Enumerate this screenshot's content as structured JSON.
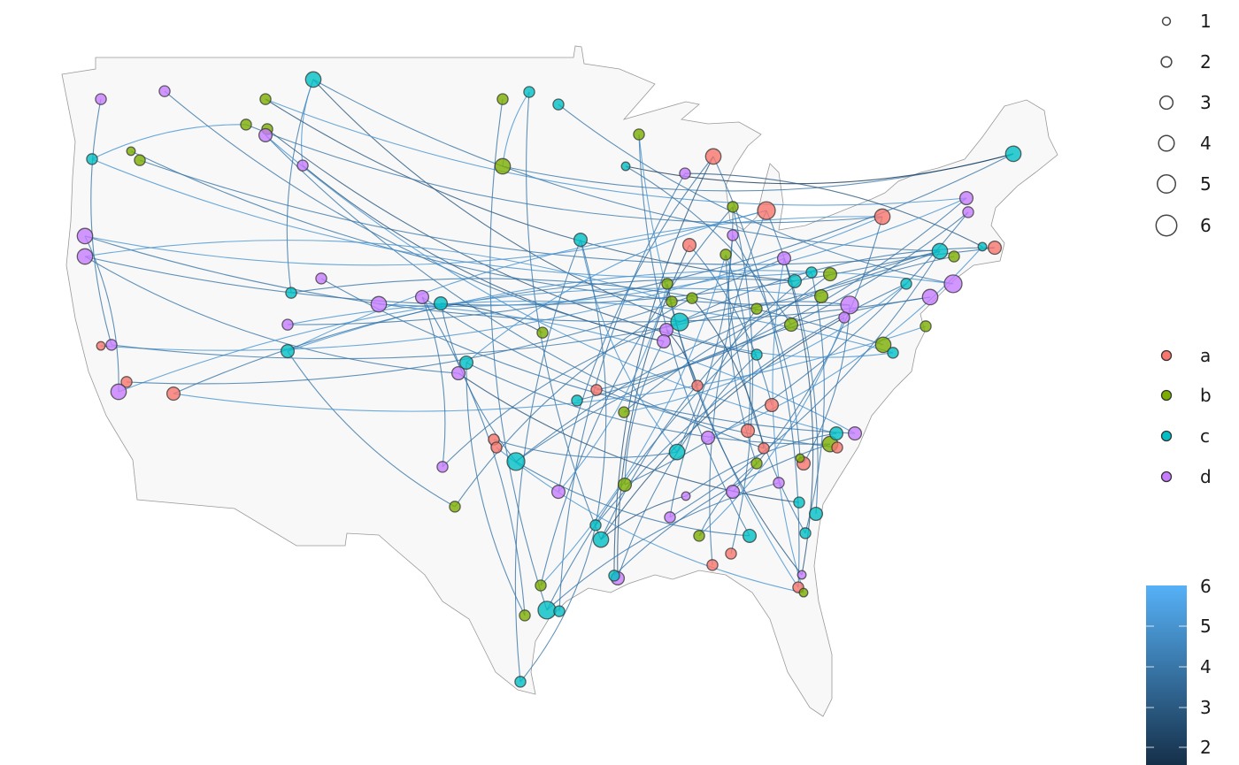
{
  "chart_data": {
    "type": "map-network",
    "region": "contiguous United States",
    "projection_note": "longitude/latitude",
    "group_colors": {
      "a": "#F8766D",
      "b": "#7CAE00",
      "c": "#00BFC4",
      "d": "#C77CFF"
    },
    "edge_color_scale": {
      "low": "#132B43",
      "high": "#56B1F7",
      "range": [
        1.5,
        6
      ]
    },
    "points_columns": [
      "lon",
      "lat",
      "group",
      "size"
    ],
    "points": [
      [
        -122.3,
        47.43,
        "d",
        2
      ],
      [
        -118.7,
        47.73,
        "d",
        2
      ],
      [
        -113,
        47.43,
        "b",
        2
      ],
      [
        -110.3,
        48.17,
        "c",
        4
      ],
      [
        -99.6,
        47.43,
        "b",
        2
      ],
      [
        -98.1,
        47.7,
        "c",
        2
      ],
      [
        -96.45,
        47.23,
        "c",
        2
      ],
      [
        -114.1,
        46.47,
        "b",
        2
      ],
      [
        -112.9,
        46.3,
        "b",
        2
      ],
      [
        -113,
        46.07,
        "d",
        3
      ],
      [
        -120.6,
        45.47,
        "b",
        1
      ],
      [
        -120.1,
        45.13,
        "b",
        2
      ],
      [
        -122.8,
        45.17,
        "c",
        2
      ],
      [
        -110.9,
        44.93,
        "d",
        2
      ],
      [
        -99.6,
        44.9,
        "b",
        4
      ],
      [
        -92.65,
        44.9,
        "c",
        1
      ],
      [
        -91.9,
        46.1,
        "b",
        2
      ],
      [
        -89.3,
        44.63,
        "d",
        2
      ],
      [
        -87.7,
        45.27,
        "a",
        4
      ],
      [
        -70.75,
        45.37,
        "c",
        4
      ],
      [
        -73.4,
        43.7,
        "d",
        3
      ],
      [
        -73.3,
        43.17,
        "d",
        2
      ],
      [
        -84.7,
        43.23,
        "a",
        5
      ],
      [
        -86.6,
        43.37,
        "b",
        2
      ],
      [
        -78.15,
        43,
        "a",
        4
      ],
      [
        -123.2,
        42.27,
        "d",
        4
      ],
      [
        -123.2,
        41.5,
        "d",
        4
      ],
      [
        -95.2,
        42.13,
        "c",
        3
      ],
      [
        -89.05,
        41.93,
        "a",
        3
      ],
      [
        -86.6,
        42.3,
        "d",
        2
      ],
      [
        -87,
        41.57,
        "b",
        2
      ],
      [
        -83.7,
        41.43,
        "d",
        3
      ],
      [
        -74.9,
        41.7,
        "c",
        4
      ],
      [
        -74.1,
        41.5,
        "b",
        2
      ],
      [
        -72.5,
        41.87,
        "c",
        1
      ],
      [
        -71.8,
        41.83,
        "a",
        3
      ],
      [
        -74.15,
        40.47,
        "d",
        5
      ],
      [
        -75.45,
        39.97,
        "d",
        4
      ],
      [
        -76.8,
        40.47,
        "c",
        2
      ],
      [
        -109.85,
        40.67,
        "d",
        2
      ],
      [
        -111.55,
        40.13,
        "c",
        2
      ],
      [
        -106.6,
        39.7,
        "d",
        4
      ],
      [
        -104.15,
        39.97,
        "d",
        3
      ],
      [
        -103.1,
        39.73,
        "c",
        3
      ],
      [
        -90.3,
        40.47,
        "b",
        2
      ],
      [
        -88.9,
        39.93,
        "b",
        2
      ],
      [
        -90.05,
        39.8,
        "b",
        2
      ],
      [
        -83.1,
        40.57,
        "c",
        3
      ],
      [
        -82.15,
        40.9,
        "c",
        2
      ],
      [
        -81.1,
        40.83,
        "b",
        3
      ],
      [
        -81.6,
        40,
        "b",
        3
      ],
      [
        -80,
        39.67,
        "d",
        5
      ],
      [
        -80.3,
        39.2,
        "d",
        2
      ],
      [
        -85.25,
        39.53,
        "b",
        2
      ],
      [
        -89.6,
        39.03,
        "c",
        5
      ],
      [
        -90.35,
        38.73,
        "d",
        3
      ],
      [
        -90.5,
        38.3,
        "d",
        3
      ],
      [
        -83.3,
        38.93,
        "b",
        3
      ],
      [
        -97.35,
        38.63,
        "b",
        2
      ],
      [
        -111.75,
        38.93,
        "d",
        2
      ],
      [
        -111.75,
        37.93,
        "c",
        3
      ],
      [
        -122.3,
        38.13,
        "a",
        1
      ],
      [
        -121.7,
        38.17,
        "d",
        2
      ],
      [
        -120.85,
        36.77,
        "a",
        2
      ],
      [
        -121.3,
        36.4,
        "d",
        4
      ],
      [
        -118.2,
        36.33,
        "a",
        3
      ],
      [
        -101.65,
        37.5,
        "c",
        3
      ],
      [
        -102.1,
        37.1,
        "d",
        3
      ],
      [
        -78.1,
        38.17,
        "b",
        4
      ],
      [
        -77.55,
        37.87,
        "c",
        2
      ],
      [
        -75.7,
        38.87,
        "b",
        2
      ],
      [
        -85.25,
        37.8,
        "c",
        2
      ],
      [
        -94.3,
        36.47,
        "a",
        2
      ],
      [
        -95.4,
        36.07,
        "c",
        2
      ],
      [
        -92.75,
        35.63,
        "b",
        2
      ],
      [
        -88.6,
        36.63,
        "a",
        2
      ],
      [
        -84.4,
        35.9,
        "a",
        3
      ],
      [
        -100.1,
        34.6,
        "a",
        2
      ],
      [
        -99.95,
        34.3,
        "a",
        2
      ],
      [
        -98.85,
        33.77,
        "c",
        5
      ],
      [
        -103,
        33.57,
        "d",
        2
      ],
      [
        -89.75,
        34.13,
        "c",
        4
      ],
      [
        -88,
        34.67,
        "d",
        3
      ],
      [
        -85.75,
        34.93,
        "a",
        3
      ],
      [
        -84.85,
        34.27,
        "a",
        2
      ],
      [
        -85.25,
        33.7,
        "b",
        2
      ],
      [
        -81.1,
        34.43,
        "b",
        4
      ],
      [
        -80.7,
        34.3,
        "a",
        2
      ],
      [
        -80.75,
        34.83,
        "c",
        3
      ],
      [
        -79.7,
        34.83,
        "d",
        3
      ],
      [
        -82.6,
        33.7,
        "a",
        3
      ],
      [
        -82.8,
        33.9,
        "b",
        1
      ],
      [
        -84,
        32.97,
        "d",
        2
      ],
      [
        -96.45,
        32.63,
        "d",
        3
      ],
      [
        -92.7,
        32.9,
        "b",
        3
      ],
      [
        -86.6,
        32.63,
        "d",
        3
      ],
      [
        -89.25,
        32.47,
        "d",
        1
      ],
      [
        -90.15,
        31.67,
        "d",
        2
      ],
      [
        -102.3,
        32.07,
        "b",
        2
      ],
      [
        -94.35,
        31.37,
        "c",
        2
      ],
      [
        -94.05,
        30.83,
        "c",
        4
      ],
      [
        -88.5,
        30.97,
        "b",
        2
      ],
      [
        -85.65,
        30.97,
        "c",
        3
      ],
      [
        -82.85,
        32.23,
        "c",
        2
      ],
      [
        -81.9,
        31.8,
        "c",
        3
      ],
      [
        -82.5,
        31.07,
        "c",
        2
      ],
      [
        -86.7,
        30.3,
        "a",
        2
      ],
      [
        -87.75,
        29.87,
        "a",
        2
      ],
      [
        -93.1,
        29.37,
        "d",
        3
      ],
      [
        -93.3,
        29.47,
        "c",
        2
      ],
      [
        -82.7,
        29.5,
        "d",
        1
      ],
      [
        -82.9,
        29.03,
        "a",
        2
      ],
      [
        -82.6,
        28.83,
        "b",
        1
      ],
      [
        -97.45,
        29.1,
        "b",
        2
      ],
      [
        -98.35,
        27.97,
        "b",
        2
      ],
      [
        -97.1,
        28.17,
        "c",
        5
      ],
      [
        -96.4,
        28.13,
        "c",
        2
      ],
      [
        -98.6,
        25.47,
        "c",
        2
      ]
    ],
    "edges_columns": [
      "from_point",
      "to_point",
      "weight"
    ],
    "edges": [
      [
        1,
        63,
        4
      ],
      [
        4,
        41,
        4
      ],
      [
        4,
        14,
        5
      ],
      [
        4,
        55,
        3
      ],
      [
        4,
        33,
        4
      ],
      [
        2,
        57,
        4
      ],
      [
        3,
        21,
        5
      ],
      [
        3,
        48,
        3
      ],
      [
        5,
        116,
        4
      ],
      [
        6,
        15,
        5
      ],
      [
        6,
        101,
        4
      ],
      [
        7,
        37,
        4
      ],
      [
        8,
        13,
        5
      ],
      [
        8,
        25,
        4
      ],
      [
        9,
        72,
        3
      ],
      [
        10,
        85,
        4
      ],
      [
        10,
        89,
        5
      ],
      [
        11,
        52,
        4
      ],
      [
        12,
        36,
        4
      ],
      [
        13,
        49,
        5
      ],
      [
        14,
        57,
        3
      ],
      [
        15,
        20,
        4
      ],
      [
        16,
        20,
        2
      ],
      [
        17,
        103,
        4
      ],
      [
        17,
        112,
        5
      ],
      [
        18,
        117,
        4
      ],
      [
        19,
        94,
        4
      ],
      [
        19,
        110,
        3
      ],
      [
        23,
        67,
        5
      ],
      [
        23,
        108,
        4
      ],
      [
        24,
        114,
        4
      ],
      [
        25,
        61,
        5
      ],
      [
        26,
        38,
        4
      ],
      [
        26,
        23,
        5
      ],
      [
        27,
        68,
        4
      ],
      [
        27,
        33,
        4
      ],
      [
        28,
        118,
        4
      ],
      [
        28,
        82,
        5
      ],
      [
        29,
        109,
        3
      ],
      [
        30,
        86,
        4
      ],
      [
        31,
        106,
        4
      ],
      [
        32,
        113,
        5
      ],
      [
        33,
        75,
        4
      ],
      [
        34,
        80,
        4
      ],
      [
        35,
        18,
        3
      ],
      [
        36,
        55,
        4
      ],
      [
        37,
        61,
        5
      ],
      [
        38,
        80,
        4
      ],
      [
        39,
        100,
        4
      ],
      [
        40,
        90,
        4
      ],
      [
        42,
        21,
        5
      ],
      [
        43,
        88,
        4
      ],
      [
        44,
        80,
        4
      ],
      [
        45,
        111,
        3
      ],
      [
        46,
        99,
        4
      ],
      [
        47,
        27,
        5
      ],
      [
        48,
        66,
        4
      ],
      [
        49,
        101,
        4
      ],
      [
        50,
        116,
        4
      ],
      [
        51,
        65,
        5
      ],
      [
        52,
        55,
        4
      ],
      [
        53,
        101,
        3
      ],
      [
        54,
        98,
        4
      ],
      [
        55,
        81,
        4
      ],
      [
        56,
        70,
        5
      ],
      [
        57,
        95,
        4
      ],
      [
        58,
        16,
        4
      ],
      [
        59,
        44,
        3
      ],
      [
        60,
        20,
        4
      ],
      [
        61,
        99,
        4
      ],
      [
        62,
        25,
        5
      ],
      [
        63,
        33,
        4
      ],
      [
        64,
        32,
        4
      ],
      [
        65,
        26,
        4
      ],
      [
        66,
        71,
        5
      ],
      [
        67,
        87,
        4
      ],
      [
        67,
        115,
        4
      ],
      [
        68,
        104,
        3
      ],
      [
        69,
        41,
        4
      ],
      [
        70,
        60,
        5
      ],
      [
        72,
        109,
        4
      ],
      [
        73,
        22,
        4
      ],
      [
        74,
        21,
        4
      ],
      [
        75,
        39,
        5
      ],
      [
        76,
        56,
        3
      ],
      [
        77,
        29,
        4
      ],
      [
        78,
        82,
        4
      ],
      [
        79,
        113,
        5
      ],
      [
        80,
        103,
        4
      ],
      [
        81,
        43,
        4
      ],
      [
        82,
        24,
        4
      ],
      [
        83,
        35,
        5
      ],
      [
        84,
        31,
        4
      ],
      [
        85,
        46,
        3
      ],
      [
        86,
        102,
        4
      ],
      [
        87,
        110,
        4
      ],
      [
        89,
        97,
        4
      ],
      [
        90,
        42,
        5
      ],
      [
        91,
        52,
        4
      ],
      [
        92,
        30,
        4
      ],
      [
        93,
        116,
        4
      ],
      [
        94,
        45,
        5
      ],
      [
        95,
        22,
        4
      ],
      [
        96,
        25,
        4
      ],
      [
        97,
        101,
        3
      ],
      [
        98,
        33,
        4
      ],
      [
        100,
        28,
        4
      ],
      [
        102,
        53,
        5
      ],
      [
        105,
        23,
        4
      ],
      [
        106,
        49,
        4
      ],
      [
        107,
        24,
        4
      ],
      [
        111,
        32,
        3
      ],
      [
        112,
        19,
        4
      ],
      [
        114,
        31,
        5
      ],
      [
        115,
        43,
        4
      ],
      [
        118,
        100,
        4
      ]
    ]
  },
  "legend_size": {
    "labels": [
      "1",
      "2",
      "3",
      "4",
      "5",
      "6"
    ]
  },
  "legend_group": {
    "labels": [
      "a",
      "b",
      "c",
      "d"
    ]
  },
  "legend_weight": {
    "labels": [
      "6",
      "5",
      "4",
      "3",
      "2"
    ]
  }
}
